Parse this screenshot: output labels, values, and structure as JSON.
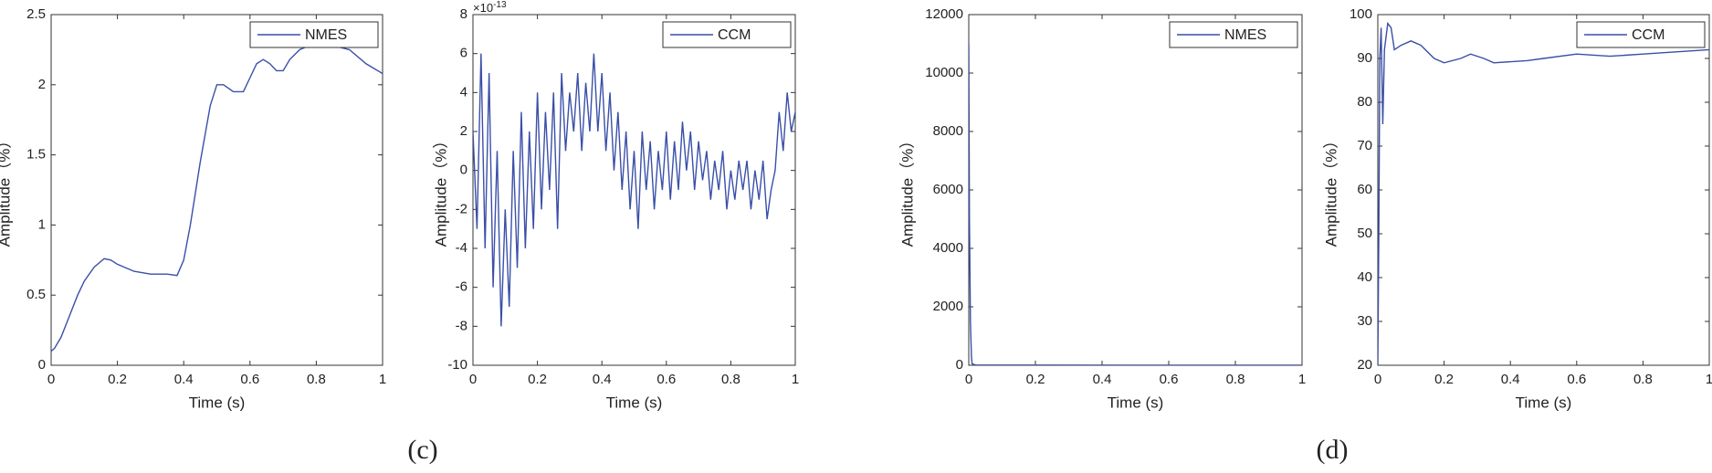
{
  "panel_labels": [
    "(c)",
    "(d)"
  ],
  "chart_data": [
    {
      "type": "line",
      "xlabel": "Time (s)",
      "ylabel": "Amplitude（%）",
      "legend": "upper right",
      "xlim": [
        0,
        1
      ],
      "xticks": [
        0,
        0.2,
        0.4,
        0.6,
        0.8,
        1
      ],
      "ylim": [
        0,
        2.5
      ],
      "yticks": [
        0,
        0.5,
        1,
        1.5,
        2,
        2.5
      ],
      "x": [
        0,
        0.01,
        0.03,
        0.05,
        0.08,
        0.1,
        0.13,
        0.16,
        0.18,
        0.2,
        0.25,
        0.3,
        0.35,
        0.38,
        0.4,
        0.42,
        0.45,
        0.48,
        0.5,
        0.52,
        0.55,
        0.58,
        0.6,
        0.62,
        0.64,
        0.66,
        0.68,
        0.7,
        0.72,
        0.75,
        0.8,
        0.85,
        0.9,
        0.95,
        1
      ],
      "series": [
        {
          "name": "NMES",
          "color": "#3a4fa8",
          "values": [
            0.1,
            0.12,
            0.2,
            0.32,
            0.5,
            0.6,
            0.7,
            0.76,
            0.75,
            0.72,
            0.67,
            0.65,
            0.65,
            0.64,
            0.75,
            1.0,
            1.45,
            1.85,
            2.0,
            2.0,
            1.95,
            1.95,
            2.05,
            2.15,
            2.18,
            2.15,
            2.1,
            2.1,
            2.18,
            2.25,
            2.3,
            2.28,
            2.25,
            2.15,
            2.08
          ]
        }
      ]
    },
    {
      "type": "line",
      "xlabel": "Time (s)",
      "ylabel": "Amplitude（%）",
      "legend": "upper right",
      "axis_multiplier": "×10",
      "axis_exponent": "-13",
      "xlim": [
        0,
        1
      ],
      "xticks": [
        0,
        0.2,
        0.4,
        0.6,
        0.8,
        1
      ],
      "ylim": [
        -10,
        8
      ],
      "yticks": [
        -10,
        -8,
        -6,
        -4,
        -2,
        0,
        2,
        4,
        6,
        8
      ],
      "x": [
        0,
        0.0125,
        0.025,
        0.0375,
        0.05,
        0.0625,
        0.075,
        0.0875,
        0.1,
        0.1125,
        0.125,
        0.1375,
        0.15,
        0.1625,
        0.175,
        0.1875,
        0.2,
        0.2125,
        0.225,
        0.2375,
        0.25,
        0.2625,
        0.275,
        0.2875,
        0.3,
        0.3125,
        0.325,
        0.3375,
        0.35,
        0.3625,
        0.375,
        0.3875,
        0.4,
        0.4125,
        0.425,
        0.4375,
        0.45,
        0.4625,
        0.475,
        0.4875,
        0.5,
        0.5125,
        0.525,
        0.5375,
        0.55,
        0.5625,
        0.575,
        0.5875,
        0.6,
        0.6125,
        0.625,
        0.6375,
        0.65,
        0.6625,
        0.675,
        0.6875,
        0.7,
        0.7125,
        0.725,
        0.7375,
        0.75,
        0.7625,
        0.775,
        0.7875,
        0.8,
        0.8125,
        0.825,
        0.8375,
        0.85,
        0.8625,
        0.875,
        0.8875,
        0.9,
        0.9125,
        0.925,
        0.9375,
        0.95,
        0.9625,
        0.975,
        0.9875,
        1
      ],
      "series": [
        {
          "name": "CCM",
          "color": "#3a4fa8",
          "values": [
            2,
            -3,
            6,
            -4,
            5,
            -6,
            1,
            -8,
            -2,
            -7,
            1,
            -5,
            3,
            -4,
            2,
            -3,
            4,
            -2,
            3,
            -1,
            4,
            -3,
            5,
            1,
            4,
            2,
            5,
            1,
            4.5,
            2,
            6,
            2,
            5,
            1,
            4,
            0,
            3,
            -1,
            2,
            -2,
            1,
            -3,
            2,
            -1,
            1.5,
            -2,
            1,
            -1,
            2,
            -1.5,
            1.5,
            -1,
            2.5,
            0,
            2,
            -1,
            1.5,
            -0.5,
            1,
            -1.5,
            0.5,
            -1,
            1,
            -2,
            0,
            -1.5,
            0.5,
            -1,
            0.5,
            -2,
            0,
            -1.5,
            0.5,
            -2.5,
            -1,
            0,
            3,
            1,
            4,
            2,
            3
          ]
        }
      ]
    },
    {
      "type": "line",
      "xlabel": "Time (s)",
      "ylabel": "Amplitude（%）",
      "legend": "upper right",
      "xlim": [
        0,
        1
      ],
      "xticks": [
        0,
        0.2,
        0.4,
        0.6,
        0.8,
        1
      ],
      "ylim": [
        0,
        12000
      ],
      "yticks": [
        0,
        2000,
        4000,
        6000,
        8000,
        10000,
        12000
      ],
      "x": [
        0,
        0.002,
        0.005,
        0.008,
        0.01,
        0.02,
        0.1,
        0.5,
        1
      ],
      "series": [
        {
          "name": "NMES",
          "color": "#3a4fa8",
          "values": [
            11000,
            5000,
            1500,
            300,
            50,
            10,
            5,
            2,
            1
          ]
        }
      ]
    },
    {
      "type": "line",
      "xlabel": "Time (s)",
      "ylabel": "Amplitude（%）",
      "legend": "upper right",
      "xlim": [
        0,
        1
      ],
      "xticks": [
        0,
        0.2,
        0.4,
        0.6,
        0.8,
        1
      ],
      "ylim": [
        20,
        100
      ],
      "yticks": [
        20,
        30,
        40,
        50,
        60,
        70,
        80,
        90,
        100
      ],
      "x": [
        0,
        0.003,
        0.006,
        0.01,
        0.015,
        0.02,
        0.03,
        0.04,
        0.05,
        0.07,
        0.1,
        0.13,
        0.17,
        0.2,
        0.25,
        0.28,
        0.32,
        0.35,
        0.45,
        0.5,
        0.6,
        0.7,
        0.8,
        0.9,
        1
      ],
      "series": [
        {
          "name": "CCM",
          "color": "#3a4fa8",
          "values": [
            20,
            50,
            90,
            97,
            75,
            92,
            98,
            97,
            92,
            93,
            94,
            93,
            90,
            89,
            90,
            91,
            90,
            89,
            89.5,
            90,
            91,
            90.5,
            91,
            91.5,
            92
          ]
        }
      ]
    }
  ]
}
